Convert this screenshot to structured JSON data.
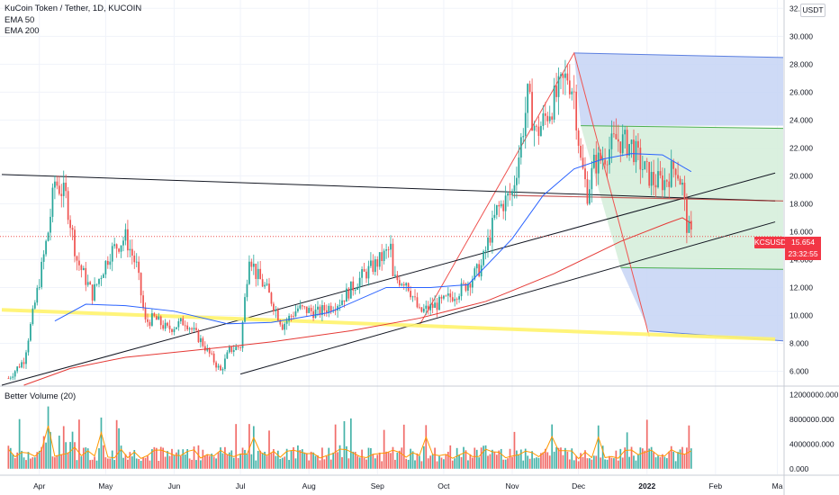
{
  "header": {
    "symbol_title": "KuCoin Token / Tether, 1D, KUCOIN",
    "indicator_1": "EMA 50",
    "indicator_2": "EMA 200",
    "currency_button": "USDT"
  },
  "volume_panel": {
    "title": "Better Volume (20)"
  },
  "price_label": {
    "ticker": "KCSUSDT",
    "price": "15.654",
    "countdown": "23:32:55"
  },
  "colors": {
    "up": "#26a69a",
    "down": "#ef5350",
    "ema50": "#2962ff",
    "ema200": "#e53935",
    "support": "#fff36b",
    "fib_blue": "#c6d3f5",
    "fib_green": "#d6eedb"
  },
  "chart_data": [
    {
      "type": "candlestick",
      "title": "KuCoin Token / Tether, 1D, KUCOIN",
      "x_axis": {
        "type": "date",
        "ticks": [
          "Apr",
          "May",
          "Jun",
          "Jul",
          "Aug",
          "Sep",
          "Oct",
          "Nov",
          "Dec",
          "2022",
          "Feb",
          "Ma"
        ]
      },
      "y_axis": {
        "ticks": [
          "6.000",
          "8.000",
          "10.000",
          "12.000",
          "14.000",
          "16.000",
          "18.000",
          "20.000",
          "22.000",
          "24.000",
          "26.000",
          "28.000",
          "30.000",
          "32.000"
        ],
        "range": [
          5,
          32.6
        ]
      },
      "last_price": 15.654,
      "price_path": [
        [
          "2021-03-18",
          5.5
        ],
        [
          "2021-03-25",
          6.8
        ],
        [
          "2021-04-01",
          12.5
        ],
        [
          "2021-04-05",
          16.0
        ],
        [
          "2021-04-08",
          19.6
        ],
        [
          "2021-04-13",
          18.5
        ],
        [
          "2021-04-18",
          14.0
        ],
        [
          "2021-04-25",
          11.5
        ],
        [
          "2021-05-03",
          14.5
        ],
        [
          "2021-05-10",
          15.6
        ],
        [
          "2021-05-15",
          13.5
        ],
        [
          "2021-05-19",
          9.5
        ],
        [
          "2021-05-23",
          9.8
        ],
        [
          "2021-05-29",
          9.0
        ],
        [
          "2021-06-06",
          9.6
        ],
        [
          "2021-06-13",
          8.2
        ],
        [
          "2021-06-22",
          6.0
        ],
        [
          "2021-06-26",
          7.5
        ],
        [
          "2021-07-01",
          7.8
        ],
        [
          "2021-07-05",
          14.5
        ],
        [
          "2021-07-08",
          13.0
        ],
        [
          "2021-07-13",
          11.8
        ],
        [
          "2021-07-20",
          9.3
        ],
        [
          "2021-07-27",
          10.5
        ],
        [
          "2021-08-05",
          10.2
        ],
        [
          "2021-08-15",
          11.0
        ],
        [
          "2021-08-25",
          12.8
        ],
        [
          "2021-09-01",
          13.8
        ],
        [
          "2021-09-07",
          14.8
        ],
        [
          "2021-09-08",
          12.6
        ],
        [
          "2021-09-14",
          12.5
        ],
        [
          "2021-09-20",
          10.2
        ],
        [
          "2021-09-24",
          10.5
        ],
        [
          "2021-10-01",
          11.0
        ],
        [
          "2021-10-10",
          12.0
        ],
        [
          "2021-10-18",
          13.5
        ],
        [
          "2021-10-25",
          17.5
        ],
        [
          "2021-11-01",
          18.8
        ],
        [
          "2021-11-04",
          21.5
        ],
        [
          "2021-11-08",
          25.6
        ],
        [
          "2021-11-12",
          23.0
        ],
        [
          "2021-11-17",
          24.5
        ],
        [
          "2021-11-22",
          26.0
        ],
        [
          "2021-11-26",
          27.2
        ],
        [
          "2021-11-29",
          26.0
        ],
        [
          "2021-12-02",
          21.0
        ],
        [
          "2021-12-05",
          18.8
        ],
        [
          "2021-12-08",
          20.8
        ],
        [
          "2021-12-12",
          21.3
        ],
        [
          "2021-12-18",
          22.6
        ],
        [
          "2021-12-25",
          22.2
        ],
        [
          "2021-12-30",
          20.6
        ],
        [
          "2022-01-04",
          19.6
        ],
        [
          "2022-01-09",
          19.6
        ],
        [
          "2022-01-14",
          20.8
        ],
        [
          "2022-01-17",
          19.2
        ],
        [
          "2022-01-19",
          16.5
        ],
        [
          "2022-01-21",
          15.654
        ]
      ],
      "ema50_path": [
        [
          "2021-04-08",
          9.6
        ],
        [
          "2021-04-22",
          10.8
        ],
        [
          "2021-05-10",
          10.7
        ],
        [
          "2021-06-01",
          10.3
        ],
        [
          "2021-06-25",
          9.4
        ],
        [
          "2021-07-15",
          9.5
        ],
        [
          "2021-08-10",
          10.2
        ],
        [
          "2021-09-05",
          12.0
        ],
        [
          "2021-09-25",
          12.0
        ],
        [
          "2021-10-12",
          12.2
        ],
        [
          "2021-11-01",
          15.5
        ],
        [
          "2021-11-15",
          18.6
        ],
        [
          "2021-11-29",
          20.5
        ],
        [
          "2021-12-12",
          21.2
        ],
        [
          "2021-12-25",
          21.6
        ],
        [
          "2022-01-08",
          21.5
        ],
        [
          "2022-01-21",
          20.3
        ]
      ],
      "ema200_path": [
        [
          "2021-03-25",
          5.0
        ],
        [
          "2021-04-15",
          6.2
        ],
        [
          "2021-05-10",
          7.0
        ],
        [
          "2021-06-10",
          7.5
        ],
        [
          "2021-07-15",
          8.1
        ],
        [
          "2021-08-20",
          8.9
        ],
        [
          "2021-09-20",
          9.8
        ],
        [
          "2021-10-20",
          11.0
        ],
        [
          "2021-11-20",
          13.0
        ],
        [
          "2021-12-20",
          15.3
        ],
        [
          "2022-01-10",
          16.6
        ],
        [
          "2022-01-17",
          17.0
        ],
        [
          "2022-01-21",
          16.6
        ]
      ],
      "trendlines": [
        {
          "color": "#131722",
          "from": [
            "2021-03-15",
            20.1
          ],
          "to": [
            "2022-02-28",
            18.2
          ]
        },
        {
          "color": "#131722",
          "from": [
            "2021-03-15",
            5.0
          ],
          "to": [
            "2022-02-28",
            20.2
          ]
        },
        {
          "color": "#131722",
          "from": [
            "2021-07-01",
            5.8
          ],
          "to": [
            "2022-02-28",
            16.7
          ]
        },
        {
          "color": "#fff36b",
          "from": [
            "2021-03-15",
            10.4
          ],
          "to": [
            "2022-02-28",
            8.3
          ]
        }
      ],
      "projection_levels": [
        28.8,
        23.6,
        13.3,
        8.5
      ]
    },
    {
      "type": "bar",
      "title": "Better Volume (20)",
      "y_axis": {
        "ticks": [
          "0.000",
          "4000000.000",
          "8000000.000",
          "12000000.000"
        ],
        "range": [
          -900000,
          13200000
        ]
      }
    }
  ]
}
